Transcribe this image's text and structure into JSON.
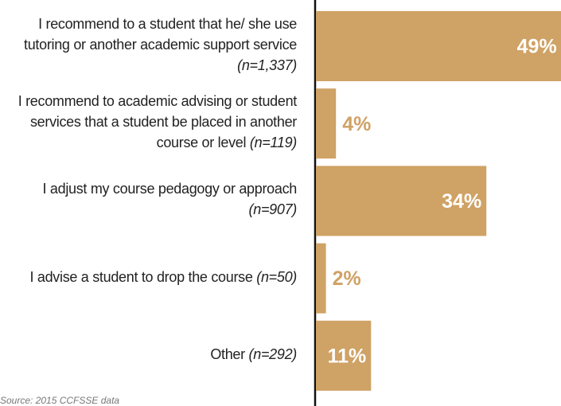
{
  "chart_data": {
    "type": "barh",
    "categories": [
      "I recommend to a student that he/ she use tutoring or another academic support service",
      "I recommend to academic advising or student services that a student be placed in another course or level",
      "I adjust my course pedagogy or approach",
      "I advise a student to drop the course",
      "Other"
    ],
    "n_labels": [
      "(n=1,337)",
      "(n=119)",
      "(n=907)",
      "(n=50)",
      "(n=292)"
    ],
    "values": [
      49,
      4,
      34,
      2,
      11
    ],
    "value_labels": [
      "49%",
      "4%",
      "34%",
      "2%",
      "11%"
    ],
    "color": "#cfa265",
    "xlim": [
      0,
      50
    ],
    "source": "Source: 2015 CCFSSE data"
  }
}
